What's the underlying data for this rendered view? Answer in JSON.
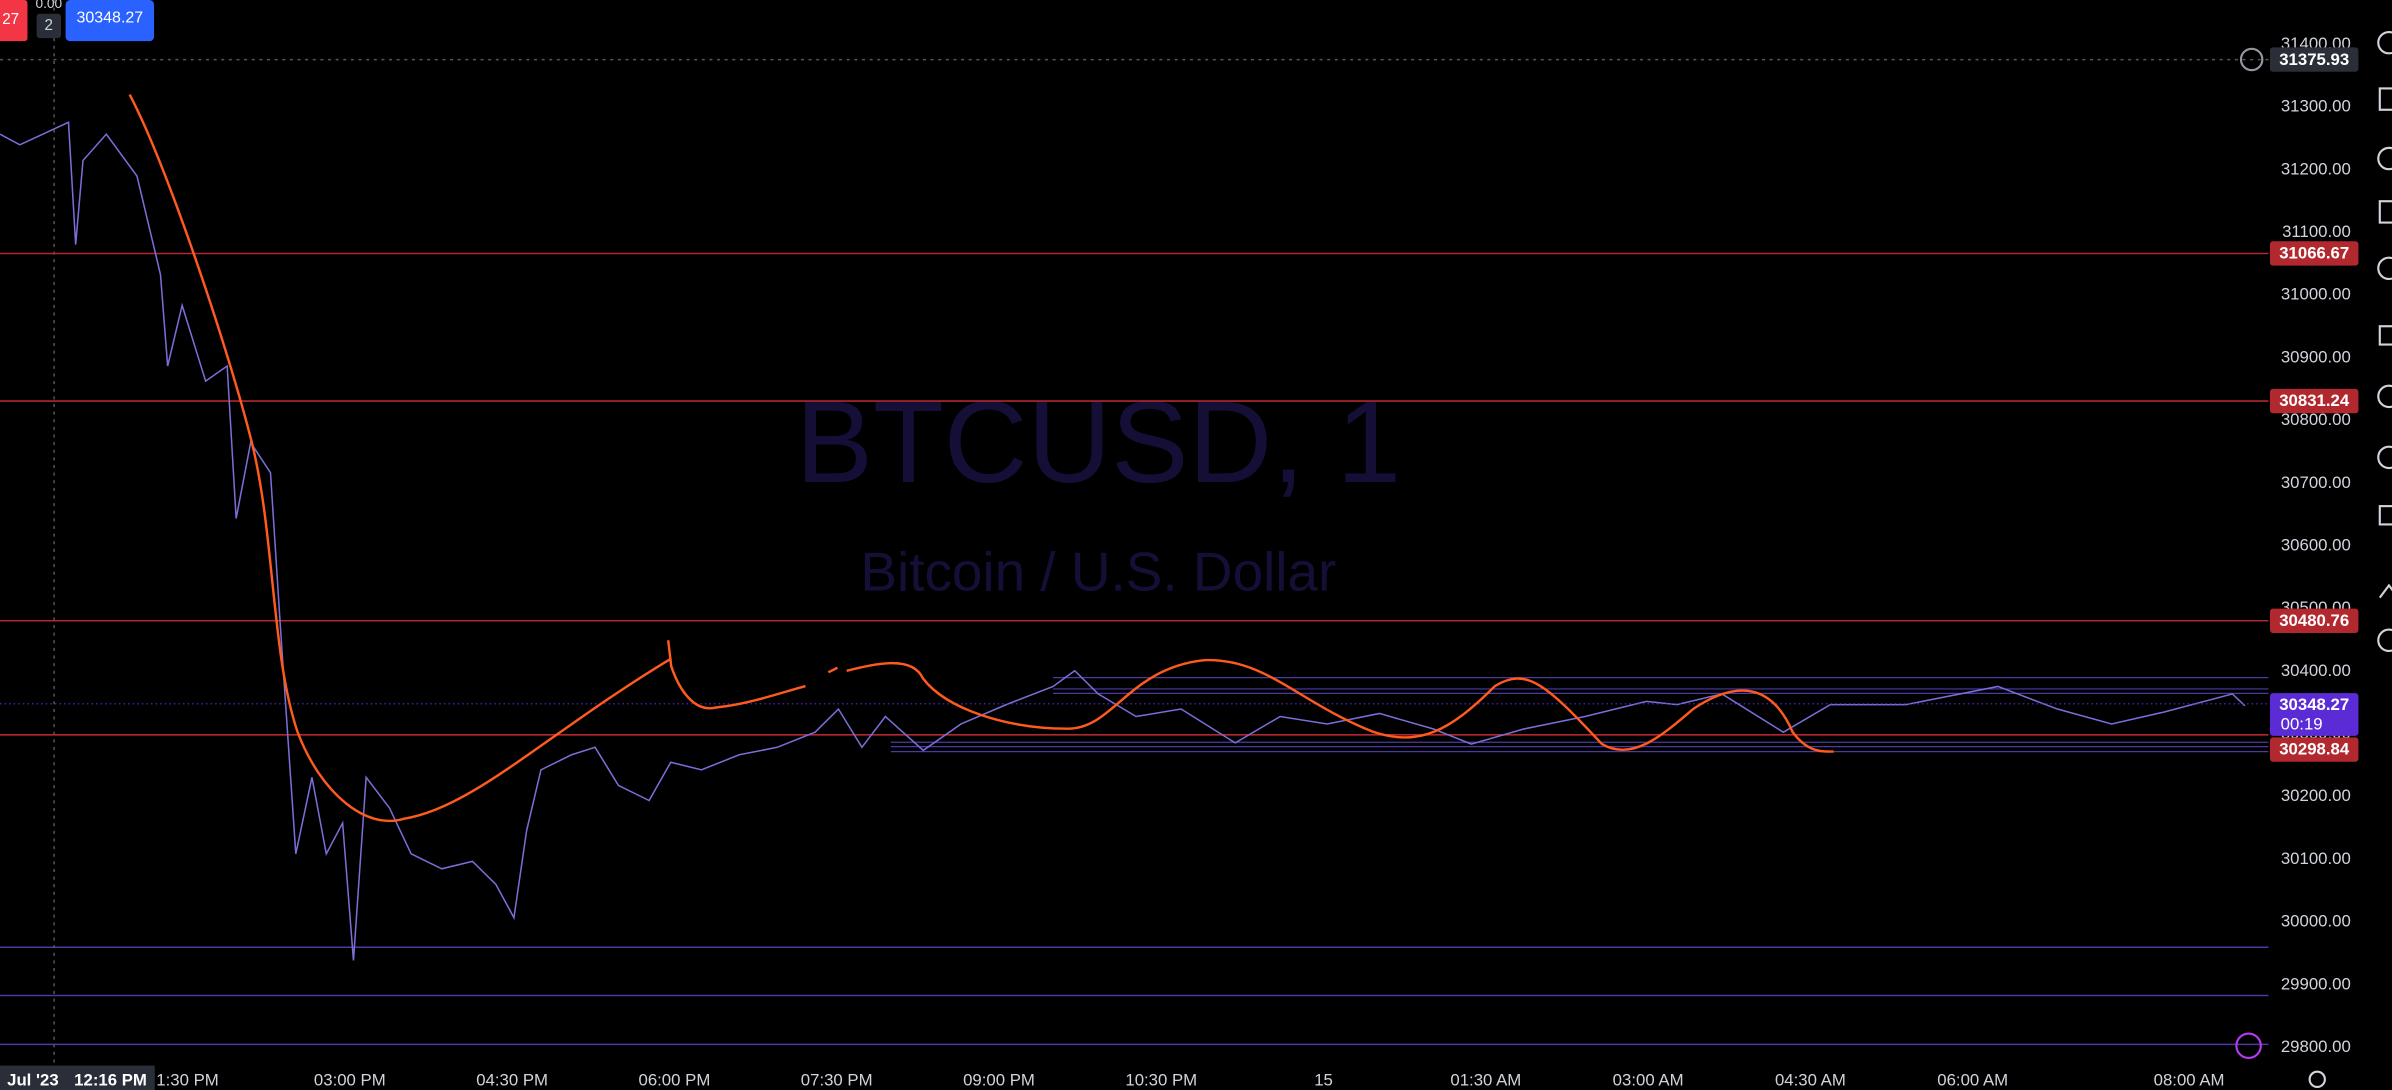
{
  "chart_data": {
    "type": "line",
    "header": {
      "change": "27",
      "spread": "0.00",
      "count": "2",
      "last": "30348.27"
    },
    "watermark": {
      "symbol": "BTCUSD, 1",
      "description": "Bitcoin / U.S. Dollar"
    },
    "xlim": [
      706,
      1964
    ],
    "ylim": [
      29776,
      31471
    ],
    "xticks": [
      {
        "value": 810,
        "label": "1:30 PM"
      },
      {
        "value": 900,
        "label": "03:00 PM"
      },
      {
        "value": 990,
        "label": "04:30 PM"
      },
      {
        "value": 1080,
        "label": "06:00 PM"
      },
      {
        "value": 1170,
        "label": "07:30 PM"
      },
      {
        "value": 1260,
        "label": "09:00 PM"
      },
      {
        "value": 1350,
        "label": "10:30 PM"
      },
      {
        "value": 1440,
        "label": "15"
      },
      {
        "value": 1530,
        "label": "01:30 AM"
      },
      {
        "value": 1620,
        "label": "03:00 AM"
      },
      {
        "value": 1710,
        "label": "04:30 AM"
      },
      {
        "value": 1800,
        "label": "06:00 AM"
      },
      {
        "value": 1920,
        "label": "08:00 AM"
      }
    ],
    "yticks": [
      {
        "value": 29800,
        "label": "29800.00"
      },
      {
        "value": 29900,
        "label": "29900.00"
      },
      {
        "value": 30000,
        "label": "30000.00"
      },
      {
        "value": 30100,
        "label": "30100.00"
      },
      {
        "value": 30200,
        "label": "30200.00"
      },
      {
        "value": 30300,
        "label": "30300.00"
      },
      {
        "value": 30400,
        "label": "30400.00"
      },
      {
        "value": 30500,
        "label": "30500.00"
      },
      {
        "value": 30600,
        "label": "30600.00"
      },
      {
        "value": 30700,
        "label": "30700.00"
      },
      {
        "value": 30800,
        "label": "30800.00"
      },
      {
        "value": 30900,
        "label": "30900.00"
      },
      {
        "value": 31000,
        "label": "31000.00"
      },
      {
        "value": 31100,
        "label": "31100.00"
      },
      {
        "value": 31200,
        "label": "31200.00"
      },
      {
        "value": 31300,
        "label": "31300.00"
      },
      {
        "value": 31400,
        "label": "31400.00"
      }
    ],
    "series": [
      {
        "name": "BTCUSD",
        "color": "#7a6fd8",
        "x": [
          706,
          717,
          744,
          748,
          752,
          765,
          782,
          795,
          799,
          807,
          820,
          832,
          837,
          845,
          856,
          862,
          870,
          879,
          887,
          896,
          902,
          909,
          922,
          934,
          951,
          968,
          981,
          991,
          998,
          1006,
          1023,
          1036,
          1049,
          1066,
          1078,
          1095,
          1116,
          1137,
          1158,
          1171,
          1184,
          1197,
          1218,
          1239,
          1264,
          1290,
          1302,
          1315,
          1336,
          1361,
          1391,
          1416,
          1442,
          1471,
          1501,
          1522,
          1551,
          1585,
          1619,
          1636,
          1661,
          1695,
          1721,
          1763,
          1814,
          1847,
          1877,
          1906,
          1944,
          1951
        ],
        "values": [
          31257,
          31240,
          31276,
          31081,
          31215,
          31257,
          31190,
          31033,
          30887,
          30984,
          30863,
          30887,
          30644,
          30765,
          30717,
          30449,
          30109,
          30231,
          30109,
          30158,
          29939,
          30231,
          30182,
          30109,
          30085,
          30097,
          30060,
          30007,
          30146,
          30243,
          30267,
          30279,
          30218,
          30194,
          30255,
          30243,
          30267,
          30279,
          30303,
          30340,
          30279,
          30328,
          30274,
          30316,
          30347,
          30376,
          30401,
          30364,
          30328,
          30340,
          30286,
          30328,
          30316,
          30333,
          30308,
          30284,
          30308,
          30328,
          30352,
          30347,
          30364,
          30303,
          30347,
          30347,
          30376,
          30340,
          30316,
          30335,
          30364,
          30345
        ]
      }
    ],
    "levels": [
      {
        "value": 31066.67,
        "label": "31066.67",
        "color": "#b2282f"
      },
      {
        "value": 30831.24,
        "label": "30831.24",
        "color": "#b2282f"
      },
      {
        "value": 30480.76,
        "label": "30480.76",
        "color": "#b2282f"
      },
      {
        "value": 30298.84,
        "label": "30298.84",
        "color": "#b2282f"
      }
    ],
    "last_price": {
      "value": 30348.27,
      "label": "30348.27",
      "countdown": "00:19",
      "color": "#5b2bd6"
    },
    "range_lines": [
      {
        "value": 30390,
        "from": 1290
      },
      {
        "value": 30372,
        "from": 1290
      },
      {
        "value": 30365,
        "from": 1290
      },
      {
        "value": 30287,
        "from": 1200
      },
      {
        "value": 30280,
        "from": 1200
      },
      {
        "value": 30272,
        "from": 1200
      }
    ],
    "support_lines": [
      29960,
      29883,
      29805
    ],
    "crosshair": {
      "x": 736,
      "y": 31375.93,
      "price_label": "31375.93",
      "date_label": "Jul '23",
      "time_label": "12:16 PM"
    }
  }
}
